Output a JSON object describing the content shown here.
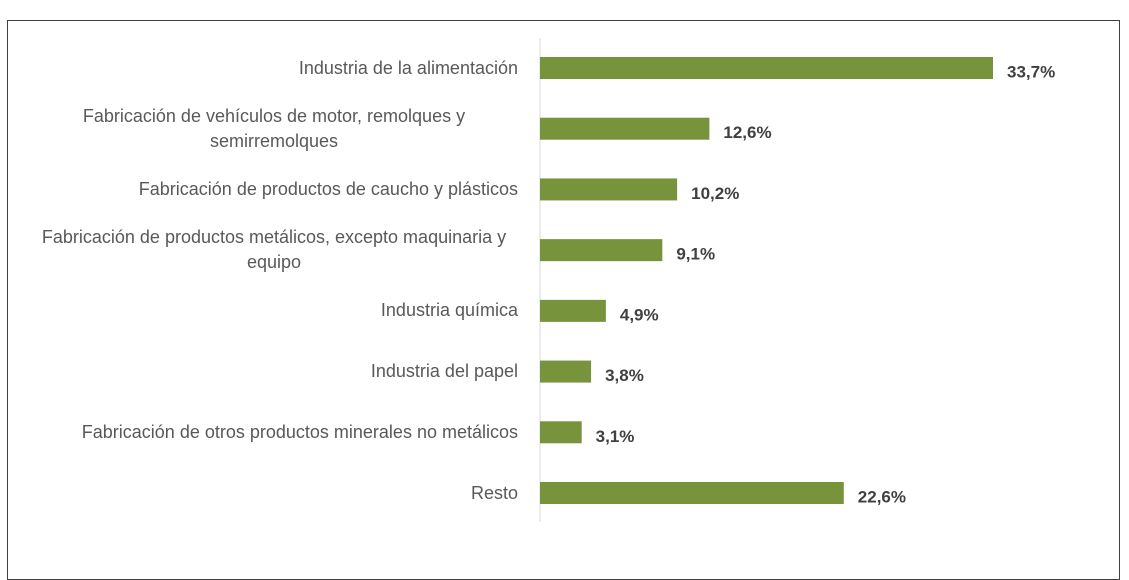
{
  "chart_data": {
    "type": "bar",
    "orientation": "horizontal",
    "categories": [
      "Industria de la alimentación",
      "Fabricación de vehículos de motor, remolques y semirremolques",
      "Fabricación de productos de caucho y plásticos",
      "Fabricación de productos metálicos, excepto maquinaria y equipo",
      "Industria química",
      "Industria del papel",
      "Fabricación de otros productos minerales no metálicos",
      "Resto"
    ],
    "values": [
      33.7,
      12.6,
      10.2,
      9.1,
      4.9,
      3.8,
      3.1,
      22.6
    ],
    "value_labels": [
      "33,7%",
      "12,6%",
      "10,2%",
      "9,1%",
      "4,9%",
      "3,8%",
      "3,1%",
      "22,6%"
    ],
    "color": "#77933c"
  }
}
